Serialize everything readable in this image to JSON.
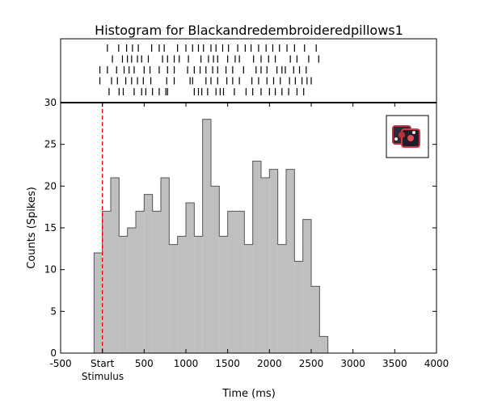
{
  "chart_data": {
    "type": "bar",
    "title": "Histogram for Blackandredembroideredpillows1",
    "xlabel": "Time (ms)",
    "ylabel": "Counts (Spikes)",
    "xlim": [
      -500,
      4000
    ],
    "ylim": [
      0,
      30
    ],
    "x_ticks": [
      -500,
      0,
      500,
      1000,
      1500,
      2000,
      2500,
      3000,
      3500,
      4000
    ],
    "x_tick_labels": [
      "-500",
      "Start",
      "500",
      "1000",
      "1500",
      "2000",
      "2500",
      "3000",
      "3500",
      "4000"
    ],
    "x_sublabel": "Stimulus",
    "y_ticks": [
      0,
      5,
      10,
      15,
      20,
      25,
      30
    ],
    "bin_width": 100,
    "bins": [
      {
        "x": -100,
        "count": 12
      },
      {
        "x": 0,
        "count": 17
      },
      {
        "x": 100,
        "count": 21
      },
      {
        "x": 200,
        "count": 14
      },
      {
        "x": 300,
        "count": 15
      },
      {
        "x": 400,
        "count": 17
      },
      {
        "x": 500,
        "count": 19
      },
      {
        "x": 600,
        "count": 17
      },
      {
        "x": 700,
        "count": 21
      },
      {
        "x": 800,
        "count": 13
      },
      {
        "x": 900,
        "count": 14
      },
      {
        "x": 1000,
        "count": 18
      },
      {
        "x": 1100,
        "count": 14
      },
      {
        "x": 1200,
        "count": 28
      },
      {
        "x": 1300,
        "count": 20
      },
      {
        "x": 1400,
        "count": 14
      },
      {
        "x": 1500,
        "count": 17
      },
      {
        "x": 1600,
        "count": 17
      },
      {
        "x": 1700,
        "count": 13
      },
      {
        "x": 1800,
        "count": 23
      },
      {
        "x": 1900,
        "count": 21
      },
      {
        "x": 2000,
        "count": 22
      },
      {
        "x": 2100,
        "count": 13
      },
      {
        "x": 2200,
        "count": 22
      },
      {
        "x": 2300,
        "count": 11
      },
      {
        "x": 2400,
        "count": 16
      },
      {
        "x": 2500,
        "count": 8
      },
      {
        "x": 2600,
        "count": 2
      }
    ],
    "stimulus_onset": 0,
    "raster": [
      [
        60,
        195,
        290,
        360,
        430,
        590,
        680,
        740,
        900,
        1000,
        1080,
        1150,
        1210,
        1300,
        1360,
        1440,
        1510,
        1620,
        1710,
        1780,
        1870,
        1960,
        2040,
        2120,
        2210,
        2300,
        2420,
        2560
      ],
      [
        120,
        240,
        300,
        350,
        420,
        470,
        550,
        720,
        780,
        860,
        920,
        1030,
        1180,
        1270,
        1330,
        1380,
        1500,
        1590,
        1640,
        1810,
        1900,
        1990,
        2070,
        2250,
        2330,
        2470,
        2590
      ],
      [
        -30,
        60,
        170,
        260,
        320,
        380,
        500,
        570,
        680,
        780,
        860,
        1020,
        1100,
        1170,
        1240,
        1320,
        1380,
        1480,
        1560,
        1690,
        1840,
        1900,
        1970,
        2090,
        2150,
        2190,
        2290,
        2360,
        2440
      ],
      [
        -30,
        110,
        180,
        280,
        350,
        420,
        490,
        580,
        770,
        860,
        1050,
        1080,
        1240,
        1300,
        1380,
        1490,
        1560,
        1640,
        1790,
        1870,
        1970,
        2050,
        2130,
        2240,
        2310,
        2390,
        2450,
        2500
      ],
      [
        80,
        200,
        250,
        380,
        470,
        520,
        600,
        680,
        760,
        780,
        1100,
        1150,
        1190,
        1260,
        1360,
        1410,
        1450,
        1580,
        1720,
        1800,
        1900,
        2000,
        2070,
        2150,
        2230,
        2330,
        2410
      ]
    ],
    "grid": false,
    "colors": {
      "bar_fill": "#bfbfbf",
      "bar_edge": "#555555",
      "stimulus_line": "#e8000b"
    },
    "inset_icon": "pillows-thumbnail"
  }
}
